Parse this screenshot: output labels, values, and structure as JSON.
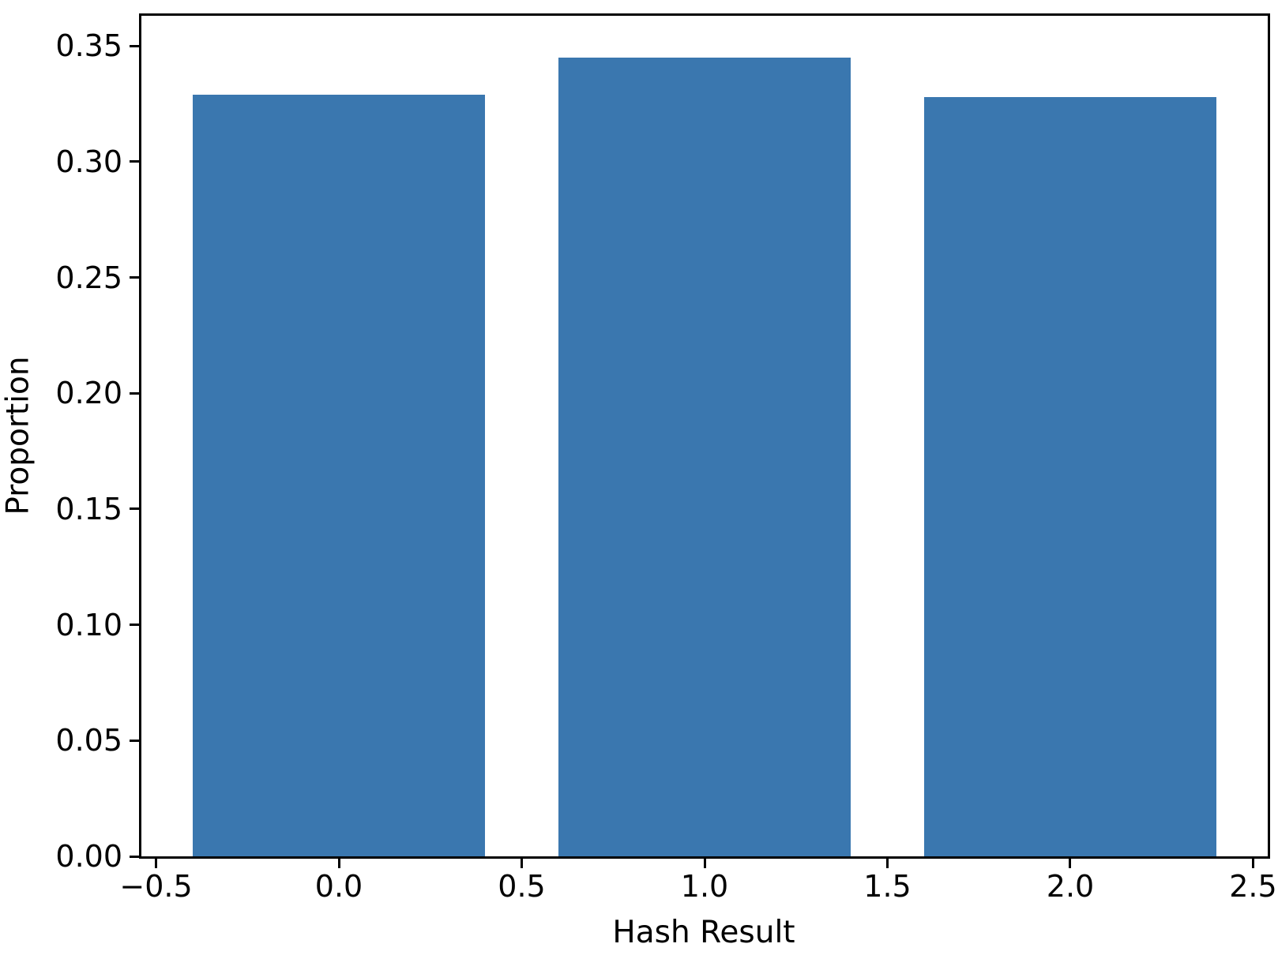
{
  "chart_data": {
    "type": "bar",
    "title": "",
    "xlabel": "Hash Result",
    "ylabel": "Proportion",
    "categories": [
      0,
      1,
      2
    ],
    "values": [
      0.329,
      0.345,
      0.328
    ],
    "bar_width": 0.8,
    "bar_color": "#3a77af",
    "xlim": [
      -0.54,
      2.54
    ],
    "ylim": [
      0,
      0.363
    ],
    "x_ticks": [
      -0.5,
      0.0,
      0.5,
      1.0,
      1.5,
      2.0,
      2.5
    ],
    "x_tick_labels": [
      "−0.5",
      "0.0",
      "0.5",
      "1.0",
      "1.5",
      "2.0",
      "2.5"
    ],
    "y_ticks": [
      0.0,
      0.05,
      0.1,
      0.15,
      0.2,
      0.25,
      0.3,
      0.35
    ],
    "y_tick_labels": [
      "0.00",
      "0.05",
      "0.10",
      "0.15",
      "0.20",
      "0.25",
      "0.30",
      "0.35"
    ],
    "grid": false,
    "legend_position": "none"
  }
}
